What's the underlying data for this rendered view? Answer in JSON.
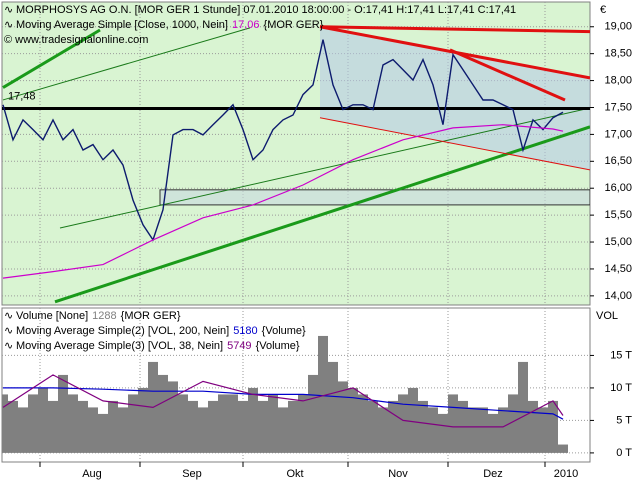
{
  "chart_data": [
    {
      "type": "line",
      "title": "MORPHOSYS AG O.N. [MOR GER  1 Stunde] 07.01.2010 18:00:00 - O:17,41 H:17,41 L:17,41 C:17,41",
      "subtitle": "© www.tradesignalonline.com",
      "unit_label": "€",
      "xlim": [
        -0.3,
        58.7
      ],
      "ylim": [
        13.83,
        19.46
      ],
      "yticks": [
        {
          "value": 14,
          "label": "14,00"
        },
        {
          "value": 14.5,
          "label": "14,50"
        },
        {
          "value": 15,
          "label": "15,00"
        },
        {
          "value": 15.5,
          "label": "15,50"
        },
        {
          "value": 16,
          "label": "16,00"
        },
        {
          "value": 16.5,
          "label": "16,50"
        },
        {
          "value": 17,
          "label": "17,00"
        },
        {
          "value": 17.5,
          "label": "17,50"
        },
        {
          "value": 18,
          "label": "18,00"
        },
        {
          "value": 18.5,
          "label": "18,50"
        },
        {
          "value": 19,
          "label": "19,00"
        }
      ],
      "month_ticks": [
        3.7,
        13.7,
        24,
        34.5,
        44.5,
        54.2
      ],
      "grid": true,
      "series": [
        {
          "color": "#0d1b6e",
          "values": [
            17.55,
            16.9,
            17.27,
            17.09,
            16.9,
            17.27,
            16.9,
            17.09,
            16.71,
            16.81,
            16.53,
            16.71,
            16.43,
            15.78,
            15.32,
            15.04,
            15.6,
            16.99,
            17.09,
            17.09,
            16.99,
            17.18,
            17.36,
            17.55,
            17.09,
            16.53,
            16.71,
            17.09,
            17.27,
            17.36,
            17.74,
            17.92,
            18.76,
            17.92,
            17.46,
            17.55,
            17.55,
            17.46,
            18.29,
            18.39,
            18.2,
            18.01,
            18.39,
            17.92,
            17.18,
            18.48,
            18.2,
            17.92,
            17.64,
            17.64,
            17.55,
            17.46,
            16.71,
            17.27,
            17.09,
            17.31,
            17.41
          ]
        },
        {
          "name": "Moving Average Simple [Close, 1000, Nein]",
          "value_label": "17,06",
          "source": "{MOR GER}",
          "color": "#cc00cc",
          "x": [
            0,
            5,
            10,
            15,
            20,
            25,
            30,
            35,
            40,
            45,
            50,
            55,
            56
          ],
          "values": [
            14.33,
            14.45,
            14.58,
            15.04,
            15.45,
            15.69,
            16.06,
            16.53,
            16.9,
            17.12,
            17.18,
            17.1,
            17.06
          ]
        }
      ],
      "hline": {
        "value": 17.48,
        "label": "17,48",
        "color": "#000000"
      },
      "trendlines": [
        {
          "color": "#1a9a1a",
          "width": 3,
          "x": [
            0,
            9.7
          ],
          "y": [
            17.87,
            18.94
          ]
        },
        {
          "color": "#1a7a1a",
          "width": 1,
          "x": [
            0,
            24.7
          ],
          "y": [
            17.64,
            18.98
          ]
        },
        {
          "color": "#1a7a1a",
          "width": 1,
          "x": [
            5.7,
            58.7
          ],
          "y": [
            15.26,
            17.49
          ]
        },
        {
          "color": "#1a9a1a",
          "width": 3,
          "x": [
            5.2,
            58.7
          ],
          "y": [
            13.89,
            17.14
          ]
        },
        {
          "color": "#e01010",
          "width": 3,
          "x": [
            31.7,
            58.7
          ],
          "y": [
            19,
            18.91
          ]
        },
        {
          "color": "#e01010",
          "width": 3,
          "x": [
            31.7,
            58.7
          ],
          "y": [
            19,
            18.05
          ]
        },
        {
          "color": "#e01010",
          "width": 3,
          "x": [
            44.7,
            56.2
          ],
          "y": [
            18.57,
            17.64
          ]
        },
        {
          "color": "#e01010",
          "width": 1,
          "x": [
            31.7,
            58.7
          ],
          "y": [
            17.31,
            16.34
          ]
        }
      ],
      "zones": [
        {
          "x": [
            15.7,
            58.7
          ],
          "y": [
            15.97,
            15.69
          ]
        }
      ]
    },
    {
      "type": "bar",
      "title": "Volume [None]",
      "value_label": "1288",
      "source": "{MOR GER}",
      "unit_label": "VOL",
      "color": "#808080",
      "xlim": [
        -0.3,
        58.7
      ],
      "ylim": [
        -1.4,
        22.3
      ],
      "yticks": [
        {
          "value": 0,
          "label": "0 T"
        },
        {
          "value": 5,
          "label": "5 T"
        },
        {
          "value": 10,
          "label": "10 T"
        },
        {
          "value": 15,
          "label": "15 T"
        }
      ],
      "month_ticks": [
        3.7,
        13.7,
        24,
        34.5,
        44.5,
        54.2
      ],
      "xlabels": [
        {
          "value": 8.9,
          "label": "Aug"
        },
        {
          "value": 18.9,
          "label": "Sep"
        },
        {
          "value": 29.2,
          "label": "Okt"
        },
        {
          "value": 39.5,
          "label": "Nov"
        },
        {
          "value": 49,
          "label": "Dez"
        },
        {
          "value": 56.3,
          "label": "2010"
        }
      ],
      "values": [
        9,
        8,
        7,
        9,
        10,
        8,
        12,
        9,
        8,
        7,
        6,
        8,
        7,
        9,
        10,
        14,
        12,
        11,
        9,
        8,
        7,
        8,
        9,
        9,
        8,
        10,
        8,
        9,
        7,
        8,
        9,
        12,
        18,
        14,
        11,
        10,
        9,
        8,
        7,
        8,
        9,
        10,
        8,
        7,
        6,
        9,
        8,
        7,
        7,
        6,
        7,
        9,
        14,
        8,
        7,
        8,
        1.288
      ],
      "series": [
        {
          "name": "Moving Average Simple(2) [VOL, 200, Nein]",
          "value_label": "5180",
          "source": "{Volume}",
          "color": "#0000cc",
          "x": [
            0,
            5,
            10,
            15,
            20,
            25,
            30,
            35,
            40,
            45,
            50,
            55,
            56
          ],
          "values": [
            10,
            10,
            9.8,
            9.5,
            9.5,
            9,
            9,
            8.5,
            7.5,
            7,
            6.5,
            6,
            5.18
          ]
        },
        {
          "name": "Moving Average Simple(3) [VOL, 38, Nein]",
          "value_label": "5749",
          "source": "{Volume}",
          "color": "#800080",
          "x": [
            0,
            5,
            10,
            15,
            20,
            25,
            30,
            35,
            40,
            45,
            50,
            55,
            56
          ],
          "values": [
            7,
            12,
            8,
            7,
            11,
            9,
            8,
            10,
            5,
            4,
            4,
            8,
            5.749
          ]
        }
      ]
    }
  ]
}
